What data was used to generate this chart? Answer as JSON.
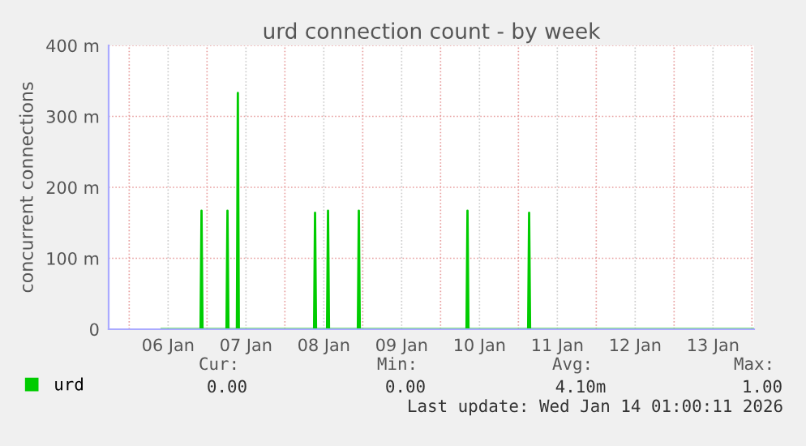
{
  "chart_data": {
    "type": "line",
    "title": "urd connection count - by week",
    "ylabel": "concurrent connections",
    "x": [
      "2026-01-06T10:00",
      "2026-01-06T22:00",
      "2026-01-06T22:18",
      "2026-01-06T22:36",
      "2026-01-07T06:00",
      "2026-01-07T06:18",
      "2026-01-07T06:36",
      "2026-01-07T09:12",
      "2026-01-07T09:30",
      "2026-01-07T09:48",
      "2026-01-08T09:00",
      "2026-01-08T09:18",
      "2026-01-08T09:36",
      "2026-01-08T13:00",
      "2026-01-08T13:18",
      "2026-01-08T13:36",
      "2026-01-08T22:30",
      "2026-01-08T22:48",
      "2026-01-08T23:06",
      "2026-01-10T08:00",
      "2026-01-10T08:18",
      "2026-01-10T08:36",
      "2026-01-11T03:00",
      "2026-01-11T03:18",
      "2026-01-11T03:36",
      "2026-01-14T00:40"
    ],
    "series": [
      {
        "name": "urd",
        "color": "#00cc00",
        "values": [
          0,
          0,
          167,
          0,
          0,
          167,
          0,
          0,
          333,
          0,
          0,
          164,
          0,
          0,
          167,
          0,
          0,
          167,
          0,
          0,
          167,
          0,
          0,
          164,
          0,
          0
        ]
      }
    ],
    "xlim": [
      "2026-01-05T17:40",
      "2026-01-14T00:40"
    ],
    "xticks": [
      {
        "value": "2026-01-06T00:00",
        "label": null
      },
      {
        "value": "2026-01-06T12:00",
        "label": "06 Jan"
      },
      {
        "value": "2026-01-07T00:00",
        "label": null
      },
      {
        "value": "2026-01-07T12:00",
        "label": "07 Jan"
      },
      {
        "value": "2026-01-08T00:00",
        "label": null
      },
      {
        "value": "2026-01-08T12:00",
        "label": "08 Jan"
      },
      {
        "value": "2026-01-09T00:00",
        "label": null
      },
      {
        "value": "2026-01-09T12:00",
        "label": "09 Jan"
      },
      {
        "value": "2026-01-10T00:00",
        "label": null
      },
      {
        "value": "2026-01-10T12:00",
        "label": "10 Jan"
      },
      {
        "value": "2026-01-11T00:00",
        "label": null
      },
      {
        "value": "2026-01-11T12:00",
        "label": "11 Jan"
      },
      {
        "value": "2026-01-12T00:00",
        "label": null
      },
      {
        "value": "2026-01-12T12:00",
        "label": "12 Jan"
      },
      {
        "value": "2026-01-13T00:00",
        "label": null
      },
      {
        "value": "2026-01-13T12:00",
        "label": "13 Jan"
      },
      {
        "value": "2026-01-14T00:00",
        "label": null
      }
    ],
    "ylim": [
      0,
      400
    ],
    "yticks": [
      0,
      {
        "value": 100,
        "label": "100 m"
      },
      {
        "value": 200,
        "label": "200 m"
      },
      {
        "value": 300,
        "label": "300 m"
      },
      {
        "value": 400,
        "label": "400 m"
      }
    ],
    "grid": true,
    "legend": "bottom left",
    "annotations": [
      "Cur:",
      "Min:",
      "Avg:",
      "Max:",
      "0.00",
      "0.00",
      "4.10m",
      "1.00",
      "Last update: Wed Jan 14 01:00:11 2026"
    ]
  }
}
